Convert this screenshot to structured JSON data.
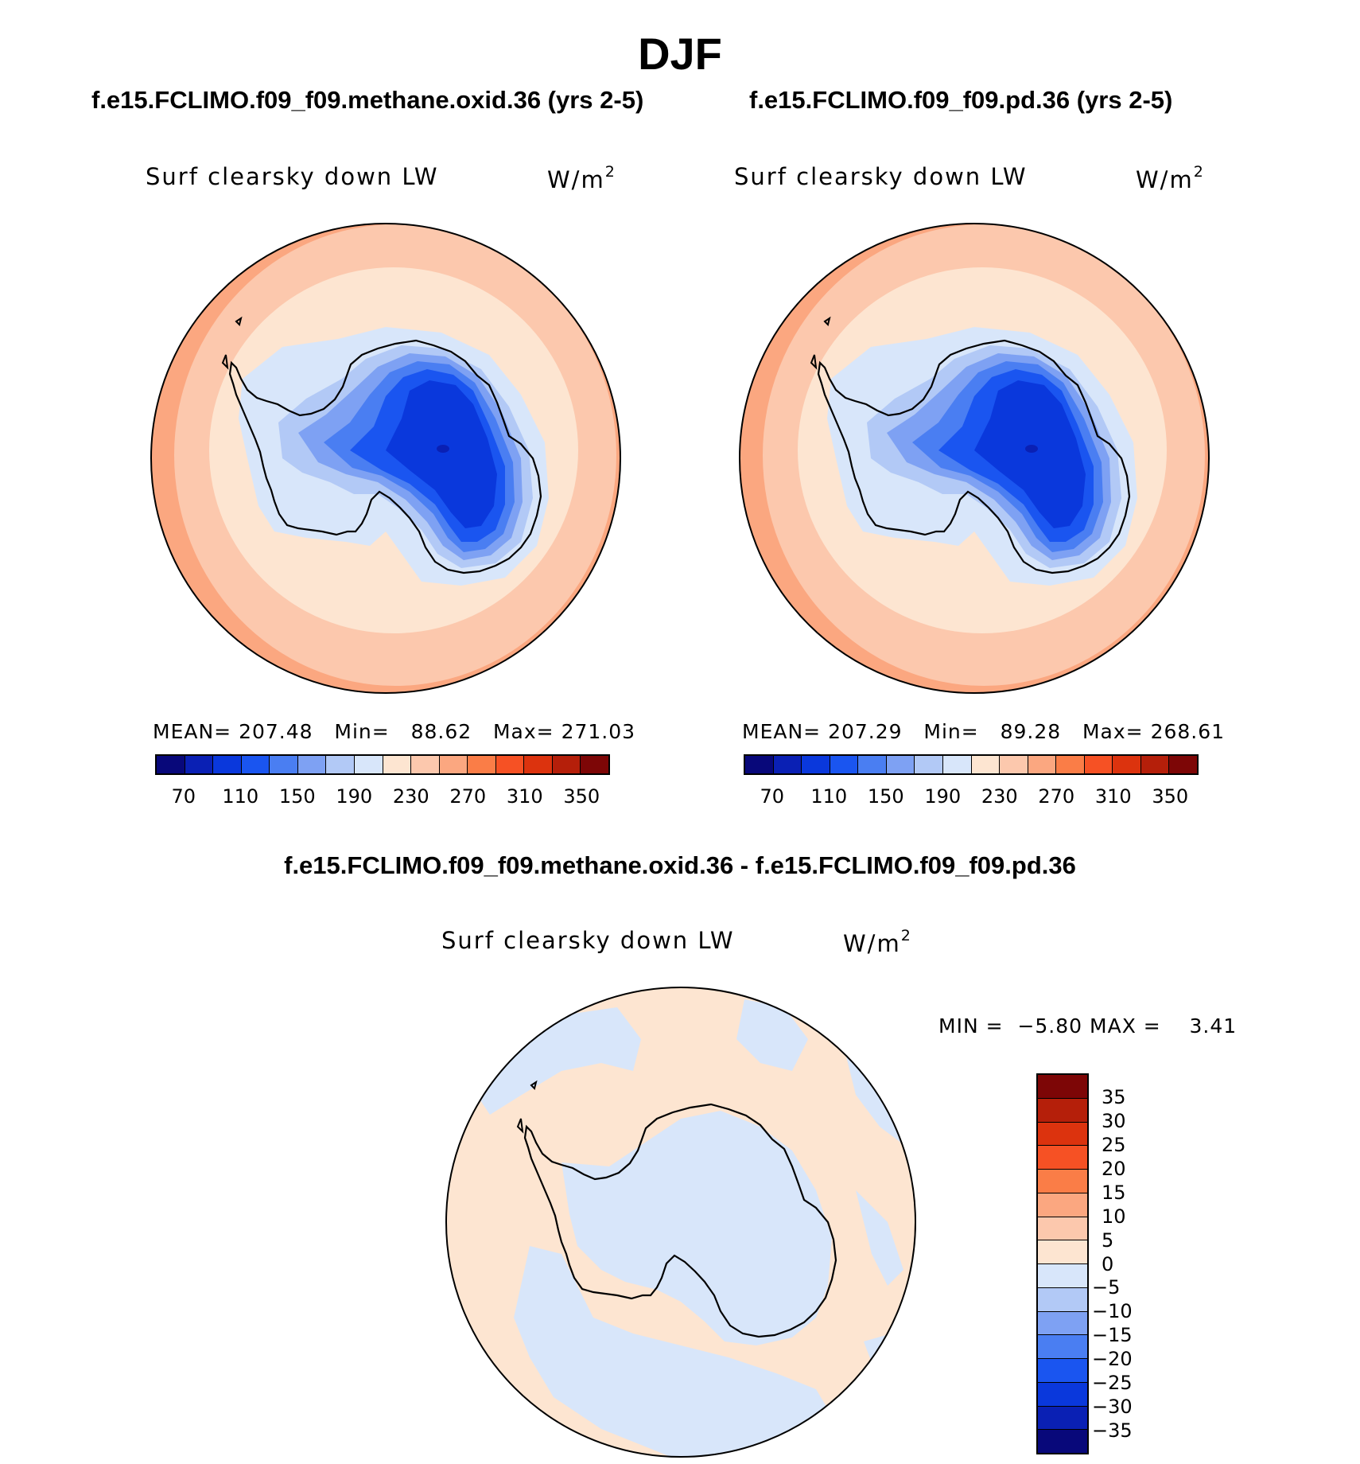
{
  "figure": {
    "title": "DJF"
  },
  "panels": [
    {
      "case_title": "f.e15.FCLIMO.f09_f09.methane.oxid.36 (yrs 2-5)",
      "label": "Surf clearsky down LW",
      "units": "W/m",
      "units_sup": "2",
      "stats": {
        "mean_label": "MEAN=",
        "mean": "207.48",
        "min_label": "Min=",
        "min": "88.62",
        "max_label": "Max=",
        "max": "271.03"
      },
      "ticks": [
        "70",
        "110",
        "150",
        "190",
        "230",
        "270",
        "310",
        "350"
      ]
    },
    {
      "case_title": "f.e15.FCLIMO.f09_f09.pd.36 (yrs 2-5)",
      "label": "Surf clearsky down LW",
      "units": "W/m",
      "units_sup": "2",
      "stats": {
        "mean_label": "MEAN=",
        "mean": "207.29",
        "min_label": "Min=",
        "min": "89.28",
        "max_label": "Max=",
        "max": "268.61"
      },
      "ticks": [
        "70",
        "110",
        "150",
        "190",
        "230",
        "270",
        "310",
        "350"
      ]
    }
  ],
  "diff_panel": {
    "case_title": "f.e15.FCLIMO.f09_f09.methane.oxid.36 - f.e15.FCLIMO.f09_f09.pd.36",
    "label": "Surf clearsky down LW",
    "units": "W/m",
    "units_sup": "2",
    "stats": {
      "min_label": "MIN =",
      "min": "−5.80",
      "max_label": "MAX =",
      "max": "3.41"
    },
    "ticks": [
      "35",
      "30",
      "25",
      "20",
      "15",
      "10",
      "5",
      "0",
      "−5",
      "−10",
      "−15",
      "−20",
      "−25",
      "−30",
      "−35"
    ]
  },
  "colormaps": {
    "absolute": [
      "#08087a",
      "#0a20b4",
      "#0a38dc",
      "#1a55f0",
      "#4a7ef2",
      "#7ea1f3",
      "#b2c9f6",
      "#d8e6fa",
      "#fde5d1",
      "#fcc8ad",
      "#fba780",
      "#fa7d47",
      "#f65124",
      "#dc330e",
      "#b51f0a",
      "#7d0606"
    ],
    "difference": [
      "#7d0606",
      "#b51f0a",
      "#dc330e",
      "#f65124",
      "#fa7d47",
      "#fba780",
      "#fcc8ad",
      "#fde5d1",
      "#d8e6fa",
      "#b2c9f6",
      "#7ea1f3",
      "#4a7ef2",
      "#1a55f0",
      "#0a38dc",
      "#0a20b4",
      "#08087a"
    ]
  },
  "map_fill": {
    "outer_ring": "#fcc8ad",
    "outer_edge": "#fba780",
    "inner_ocean": "#fde5d1",
    "shelf": "#d8e6fa",
    "interior_1": "#b2c9f6",
    "interior_2": "#7ea1f3",
    "interior_3": "#4a7ef2",
    "interior_4": "#1a55f0",
    "interior_5": "#0a38dc",
    "interior_6": "#0a20b4",
    "diff_positive": "#fde5d1",
    "diff_negative": "#d8e6fa"
  }
}
